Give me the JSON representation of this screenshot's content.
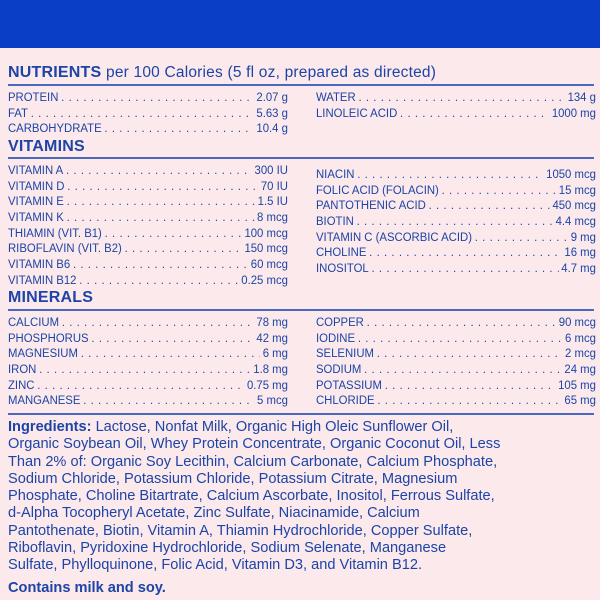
{
  "nutrients": {
    "title": "NUTRIENTS",
    "subtitle": "per 100 Calories (5 fl oz, prepared as directed)",
    "left": [
      {
        "label": "PROTEIN",
        "value": "2.07 g"
      },
      {
        "label": "FAT",
        "value": "5.63 g"
      },
      {
        "label": "CARBOHYDRATE",
        "value": "10.4 g"
      }
    ],
    "right": [
      {
        "label": "WATER",
        "value": "134 g"
      },
      {
        "label": "LINOLEIC ACID",
        "value": "1000 mg"
      }
    ]
  },
  "vitamins": {
    "title": "VITAMINS",
    "left": [
      {
        "label": "VITAMIN A",
        "value": "300 IU"
      },
      {
        "label": "VITAMIN D",
        "value": "70 IU"
      },
      {
        "label": "VITAMIN E",
        "value": "1.5 IU"
      },
      {
        "label": "VITAMIN K",
        "value": "8 mcg"
      },
      {
        "label": "THIAMIN (VIT. B1)",
        "value": "100 mcg"
      },
      {
        "label": "RIBOFLAVIN (VIT. B2)",
        "value": "150 mcg"
      },
      {
        "label": "VITAMIN B6",
        "value": "60 mcg"
      },
      {
        "label": "VITAMIN B12",
        "value": "0.25 mcg"
      }
    ],
    "right": [
      {
        "label": "NIACIN",
        "value": "1050 mcg"
      },
      {
        "label": "FOLIC ACID (FOLACIN)",
        "value": "15 mcg"
      },
      {
        "label": "PANTOTHENIC ACID",
        "value": "450 mcg"
      },
      {
        "label": "BIOTIN",
        "value": "4.4 mcg"
      },
      {
        "label": "VITAMIN C (ASCORBIC ACID)",
        "value": "9 mg"
      },
      {
        "label": "CHOLINE",
        "value": "16 mg"
      },
      {
        "label": "INOSITOL",
        "value": "4.7 mg"
      }
    ]
  },
  "minerals": {
    "title": "MINERALS",
    "left": [
      {
        "label": "CALCIUM",
        "value": "78 mg"
      },
      {
        "label": "PHOSPHORUS",
        "value": "42 mg"
      },
      {
        "label": "MAGNESIUM",
        "value": "6 mg"
      },
      {
        "label": "IRON",
        "value": "1.8 mg"
      },
      {
        "label": "ZINC",
        "value": "0.75 mg"
      },
      {
        "label": "MANGANESE",
        "value": "5 mcg"
      }
    ],
    "right": [
      {
        "label": "COPPER",
        "value": "90 mcg"
      },
      {
        "label": "IODINE",
        "value": "6 mcg"
      },
      {
        "label": "SELENIUM",
        "value": "2 mcg"
      },
      {
        "label": "SODIUM",
        "value": "24 mg"
      },
      {
        "label": "POTASSIUM",
        "value": "105 mg"
      },
      {
        "label": "CHLORIDE",
        "value": "65 mg"
      }
    ]
  },
  "ingredients": {
    "label": "Ingredients:",
    "lines": [
      " Lactose, Nonfat Milk, Organic High Oleic Sunflower Oil,",
      "Organic Soybean Oil, Whey Protein Concentrate, Organic Coconut Oil, Less",
      "Than 2% of: Organic Soy Lecithin, Calcium Carbonate, Calcium Phosphate,",
      "Sodium Chloride, Potassium Chloride, Potassium Citrate, Magnesium",
      "Phosphate, Choline Bitartrate, Calcium Ascorbate, Inositol, Ferrous Sulfate,",
      "d-Alpha Tocopheryl Acetate, Zinc Sulfate, Niacinamide, Calcium",
      "Pantothenate, Biotin, Vitamin A, Thiamin Hydrochloride, Copper Sulfate,",
      "Riboflavin, Pyridoxine Hydrochloride, Sodium Selenate, Manganese",
      "Sulfate, Phylloquinone, Folic Acid, Vitamin D3, and Vitamin B12."
    ],
    "allergens": "Contains milk and soy."
  },
  "colors": {
    "band": "#0a3ec6",
    "text": "#1d44a6",
    "background": "#fbe9ec"
  }
}
